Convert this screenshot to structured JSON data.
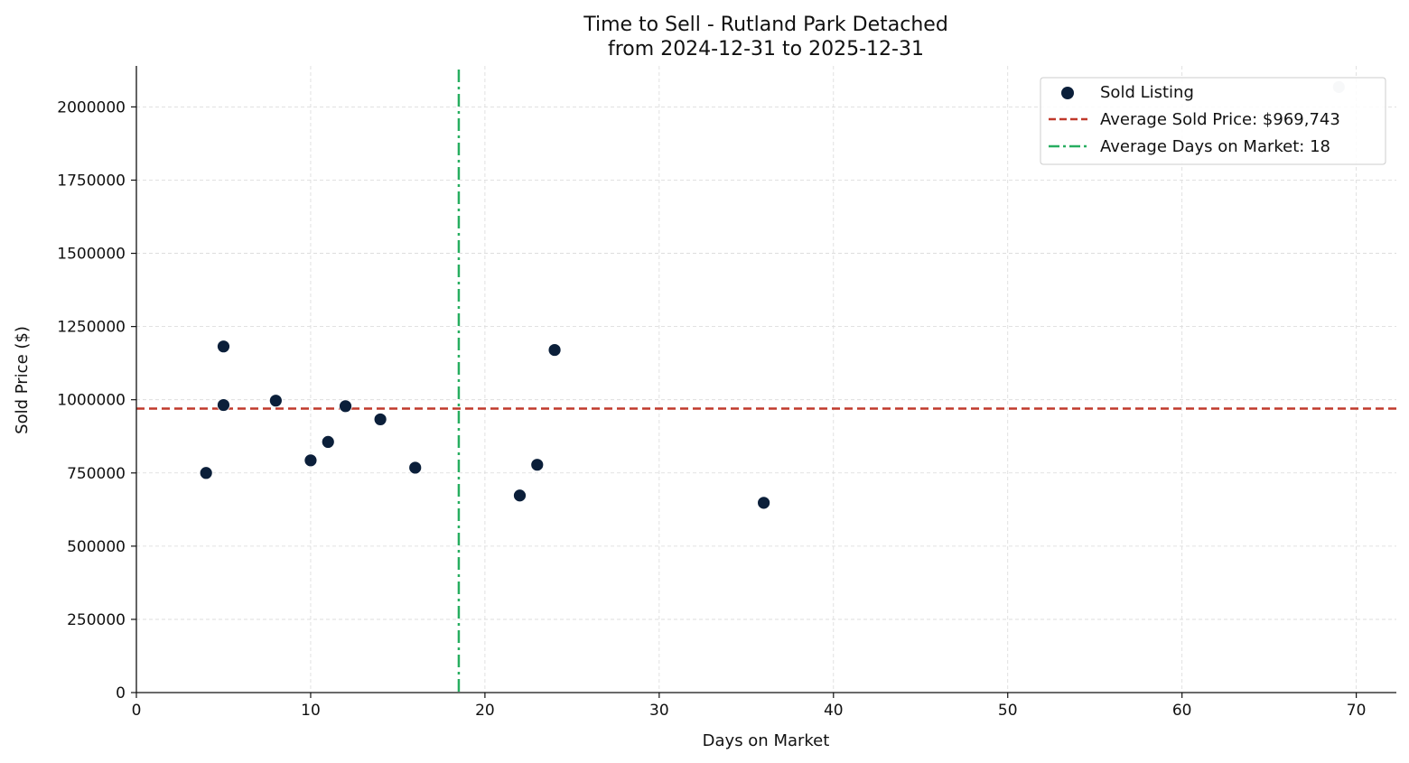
{
  "chart_data": {
    "type": "scatter",
    "title": "Time to Sell - Rutland Park Detached",
    "subtitle": "from 2024-12-31 to 2025-12-31",
    "xlabel": "Days on Market",
    "ylabel": "Sold Price ($)",
    "xlim": [
      0,
      72.3
    ],
    "ylim": [
      0,
      2140000
    ],
    "x_ticks": [
      0,
      10,
      20,
      30,
      40,
      50,
      60,
      70
    ],
    "y_ticks": [
      0,
      250000,
      500000,
      750000,
      1000000,
      1250000,
      1500000,
      1750000,
      2000000
    ],
    "grid": true,
    "legend_position": "top-right",
    "series": [
      {
        "name": "Sold Listing",
        "color": "#0b1f3a",
        "points": [
          {
            "x": 4,
            "y": 750000
          },
          {
            "x": 5,
            "y": 1182000
          },
          {
            "x": 5,
            "y": 982000
          },
          {
            "x": 8,
            "y": 997000
          },
          {
            "x": 10,
            "y": 793000
          },
          {
            "x": 11,
            "y": 856000
          },
          {
            "x": 12,
            "y": 978000
          },
          {
            "x": 14,
            "y": 933000
          },
          {
            "x": 16,
            "y": 768000
          },
          {
            "x": 22,
            "y": 673000
          },
          {
            "x": 23,
            "y": 778000
          },
          {
            "x": 24,
            "y": 1170000
          },
          {
            "x": 36,
            "y": 648000
          }
        ]
      }
    ],
    "outliers": {
      "color": "#c8ced6",
      "points": [
        {
          "x": 69,
          "y": 2068000
        }
      ]
    },
    "reference_lines": [
      {
        "name": "Average Sold Price: $969,743",
        "orientation": "horizontal",
        "value": 969743,
        "color": "#c0392b",
        "style": "dashed"
      },
      {
        "name": "Average Days on Market: 18",
        "orientation": "vertical",
        "value": 18.5,
        "color": "#27ae60",
        "style": "dashdot"
      }
    ]
  }
}
